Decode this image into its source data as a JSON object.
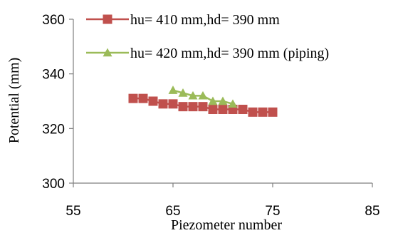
{
  "chart_data": {
    "type": "line",
    "xlabel": "Piezometer number",
    "ylabel": "Potential (mm)",
    "xlim": [
      55,
      85
    ],
    "ylim": [
      300,
      360
    ],
    "x_ticks": [
      55,
      65,
      75,
      85
    ],
    "y_ticks": [
      300,
      320,
      340,
      360
    ],
    "grid": false,
    "legend_position": "top-right",
    "series": [
      {
        "name": "hu= 410 mm,hd= 390 mm",
        "color": "#c0504d",
        "marker": "square",
        "x": [
          61,
          62,
          63,
          64,
          65,
          66,
          67,
          68,
          69,
          70,
          71,
          72,
          73,
          74,
          75
        ],
        "y": [
          331,
          331,
          330,
          329,
          329,
          328,
          328,
          328,
          327,
          327,
          327,
          327,
          326,
          326,
          326
        ]
      },
      {
        "name": "hu= 420 mm,hd= 390 mm (piping)",
        "color": "#9bbb59",
        "marker": "triangle",
        "x": [
          65,
          66,
          67,
          68,
          69,
          70,
          71
        ],
        "y": [
          334,
          333,
          332,
          332,
          330,
          330,
          329
        ]
      }
    ]
  }
}
